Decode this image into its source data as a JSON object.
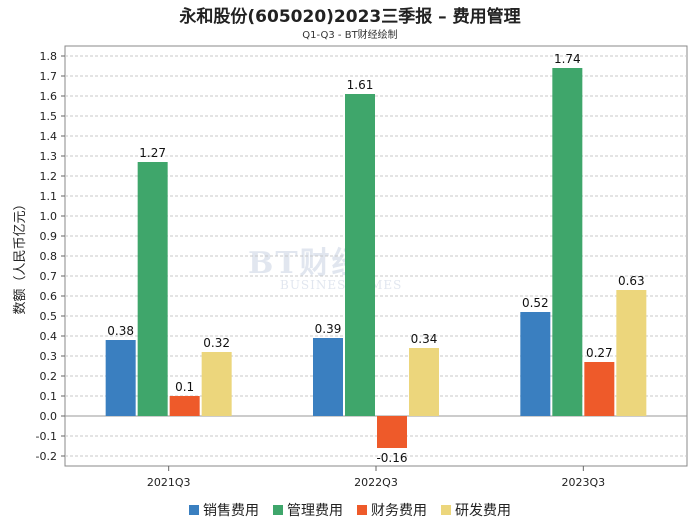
{
  "title": "永和股份(605020)2023三季报 – 费用管理",
  "subtitle": "Q1-Q3 - BT财经绘制",
  "watermark": {
    "main": "BT财经",
    "sub": "BUSINESSTIMES"
  },
  "chart_data": {
    "type": "bar",
    "title": "永和股份(605020)2023三季报 – 费用管理",
    "subtitle": "Q1-Q3 - BT财经绘制",
    "xlabel": "",
    "ylabel": "数额（人民币亿元）",
    "ylim": [
      -0.25,
      1.85
    ],
    "yticks": [
      "-0.2",
      "-0.1",
      "0.0",
      "0.1",
      "0.2",
      "0.3",
      "0.4",
      "0.5",
      "0.6",
      "0.7",
      "0.8",
      "0.9",
      "1.0",
      "1.1",
      "1.2",
      "1.3",
      "1.4",
      "1.5",
      "1.6",
      "1.7",
      "1.8"
    ],
    "categories": [
      "2021Q3",
      "2022Q3",
      "2023Q3"
    ],
    "series": [
      {
        "name": "销售费用",
        "color": "#3a7fc0",
        "values": [
          0.38,
          0.39,
          0.52
        ],
        "labels": [
          "0.38",
          "0.39",
          "0.52"
        ]
      },
      {
        "name": "管理费用",
        "color": "#3fa66b",
        "values": [
          1.27,
          1.61,
          1.74
        ],
        "labels": [
          "1.27",
          "1.61",
          "1.74"
        ]
      },
      {
        "name": "财务费用",
        "color": "#ee5a2a",
        "values": [
          0.1,
          -0.16,
          0.27
        ],
        "labels": [
          "0.1",
          "-0.16",
          "0.27"
        ]
      },
      {
        "name": "研发费用",
        "color": "#ecd67c",
        "values": [
          0.32,
          0.34,
          0.63
        ],
        "labels": [
          "0.32",
          "0.34",
          "0.63"
        ]
      }
    ],
    "legend": "bottom",
    "grid": true
  }
}
